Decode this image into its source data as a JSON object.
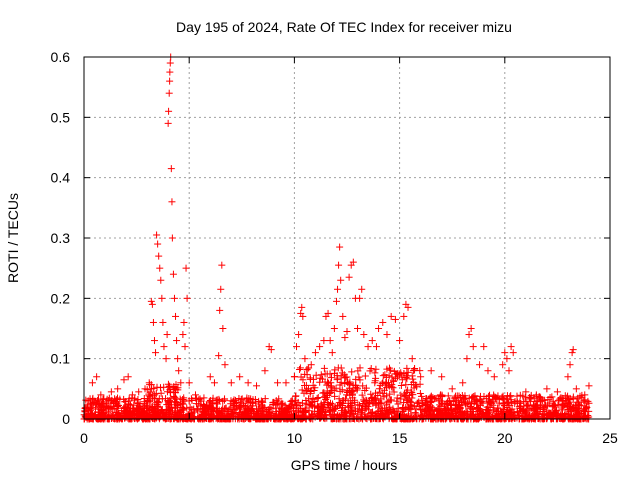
{
  "chart_data": {
    "type": "scatter",
    "title": "Day 195 of 2024, Rate Of TEC Index for receiver mizu",
    "xlabel": "GPS time / hours",
    "ylabel": "ROTI / TECUs",
    "xlim": [
      0,
      25
    ],
    "ylim": [
      0,
      0.6
    ],
    "x_ticks": [
      0,
      5,
      10,
      15,
      20,
      25
    ],
    "x_tick_labels": [
      "0",
      "5",
      "10",
      "15",
      "20",
      "25"
    ],
    "y_ticks": [
      0,
      0.1,
      0.2,
      0.3,
      0.4,
      0.5,
      0.6
    ],
    "y_tick_labels": [
      "0",
      "0.1",
      "0.2",
      "0.3",
      "0.4",
      "0.5",
      "0.6"
    ],
    "grid": true,
    "marker": "+",
    "marker_color": "#ff0000",
    "series": [
      {
        "name": "ROTI",
        "points": [
          [
            0.05,
            0.012
          ],
          [
            0.2,
            0.03
          ],
          [
            0.4,
            0.06
          ],
          [
            0.6,
            0.07
          ],
          [
            0.8,
            0.04
          ],
          [
            1.0,
            0.02
          ],
          [
            1.3,
            0.045
          ],
          [
            1.6,
            0.05
          ],
          [
            1.9,
            0.065
          ],
          [
            2.1,
            0.07
          ],
          [
            2.3,
            0.04
          ],
          [
            2.6,
            0.045
          ],
          [
            2.9,
            0.05
          ],
          [
            3.1,
            0.06
          ],
          [
            3.2,
            0.195
          ],
          [
            3.25,
            0.19
          ],
          [
            3.3,
            0.16
          ],
          [
            3.35,
            0.13
          ],
          [
            3.4,
            0.11
          ],
          [
            3.45,
            0.305
          ],
          [
            3.5,
            0.29
          ],
          [
            3.55,
            0.27
          ],
          [
            3.6,
            0.25
          ],
          [
            3.65,
            0.23
          ],
          [
            3.7,
            0.2
          ],
          [
            3.75,
            0.16
          ],
          [
            3.8,
            0.12
          ],
          [
            3.9,
            0.1
          ],
          [
            3.95,
            0.14
          ],
          [
            4.0,
            0.49
          ],
          [
            4.02,
            0.51
          ],
          [
            4.05,
            0.54
          ],
          [
            4.07,
            0.56
          ],
          [
            4.08,
            0.575
          ],
          [
            4.1,
            0.59
          ],
          [
            4.12,
            0.6
          ],
          [
            4.15,
            0.415
          ],
          [
            4.18,
            0.36
          ],
          [
            4.2,
            0.3
          ],
          [
            4.25,
            0.24
          ],
          [
            4.3,
            0.2
          ],
          [
            4.35,
            0.17
          ],
          [
            4.4,
            0.13
          ],
          [
            4.45,
            0.1
          ],
          [
            4.5,
            0.08
          ],
          [
            4.6,
            0.06
          ],
          [
            4.7,
            0.14
          ],
          [
            4.75,
            0.16
          ],
          [
            4.8,
            0.12
          ],
          [
            4.85,
            0.25
          ],
          [
            4.9,
            0.2
          ],
          [
            5.0,
            0.06
          ],
          [
            5.3,
            0.04
          ],
          [
            5.7,
            0.035
          ],
          [
            6.0,
            0.07
          ],
          [
            6.2,
            0.06
          ],
          [
            6.4,
            0.105
          ],
          [
            6.45,
            0.18
          ],
          [
            6.5,
            0.215
          ],
          [
            6.55,
            0.255
          ],
          [
            6.6,
            0.15
          ],
          [
            6.7,
            0.09
          ],
          [
            7.0,
            0.06
          ],
          [
            7.4,
            0.07
          ],
          [
            7.8,
            0.06
          ],
          [
            8.2,
            0.055
          ],
          [
            8.6,
            0.08
          ],
          [
            8.8,
            0.12
          ],
          [
            8.9,
            0.115
          ],
          [
            9.2,
            0.06
          ],
          [
            9.6,
            0.06
          ],
          [
            10.0,
            0.07
          ],
          [
            10.1,
            0.12
          ],
          [
            10.2,
            0.14
          ],
          [
            10.3,
            0.175
          ],
          [
            10.35,
            0.185
          ],
          [
            10.4,
            0.17
          ],
          [
            10.5,
            0.1
          ],
          [
            10.8,
            0.09
          ],
          [
            11.0,
            0.11
          ],
          [
            11.2,
            0.12
          ],
          [
            11.4,
            0.13
          ],
          [
            11.5,
            0.17
          ],
          [
            11.6,
            0.175
          ],
          [
            11.7,
            0.13
          ],
          [
            11.8,
            0.11
          ],
          [
            11.9,
            0.15
          ],
          [
            12.0,
            0.195
          ],
          [
            12.05,
            0.215
          ],
          [
            12.1,
            0.255
          ],
          [
            12.15,
            0.285
          ],
          [
            12.2,
            0.23
          ],
          [
            12.3,
            0.17
          ],
          [
            12.4,
            0.135
          ],
          [
            12.5,
            0.145
          ],
          [
            12.6,
            0.235
          ],
          [
            12.7,
            0.255
          ],
          [
            12.8,
            0.26
          ],
          [
            12.9,
            0.2
          ],
          [
            13.0,
            0.15
          ],
          [
            13.1,
            0.2
          ],
          [
            13.2,
            0.215
          ],
          [
            13.3,
            0.14
          ],
          [
            13.5,
            0.12
          ],
          [
            13.7,
            0.13
          ],
          [
            13.9,
            0.12
          ],
          [
            14.0,
            0.15
          ],
          [
            14.2,
            0.16
          ],
          [
            14.4,
            0.14
          ],
          [
            14.6,
            0.17
          ],
          [
            14.8,
            0.165
          ],
          [
            15.0,
            0.13
          ],
          [
            15.2,
            0.17
          ],
          [
            15.3,
            0.19
          ],
          [
            15.4,
            0.185
          ],
          [
            15.6,
            0.1
          ],
          [
            16.0,
            0.07
          ],
          [
            16.5,
            0.08
          ],
          [
            17.0,
            0.07
          ],
          [
            17.5,
            0.05
          ],
          [
            18.0,
            0.06
          ],
          [
            18.2,
            0.1
          ],
          [
            18.3,
            0.14
          ],
          [
            18.4,
            0.15
          ],
          [
            18.5,
            0.12
          ],
          [
            18.8,
            0.09
          ],
          [
            19.0,
            0.12
          ],
          [
            19.2,
            0.08
          ],
          [
            19.5,
            0.07
          ],
          [
            19.9,
            0.09
          ],
          [
            20.0,
            0.11
          ],
          [
            20.1,
            0.1
          ],
          [
            20.2,
            0.08
          ],
          [
            20.3,
            0.12
          ],
          [
            20.4,
            0.11
          ],
          [
            21.0,
            0.045
          ],
          [
            21.5,
            0.04
          ],
          [
            22.0,
            0.05
          ],
          [
            22.5,
            0.045
          ],
          [
            23.0,
            0.07
          ],
          [
            23.1,
            0.09
          ],
          [
            23.2,
            0.11
          ],
          [
            23.25,
            0.115
          ],
          [
            23.4,
            0.05
          ],
          [
            23.8,
            0.04
          ],
          [
            24.0,
            0.055
          ]
        ]
      }
    ]
  }
}
